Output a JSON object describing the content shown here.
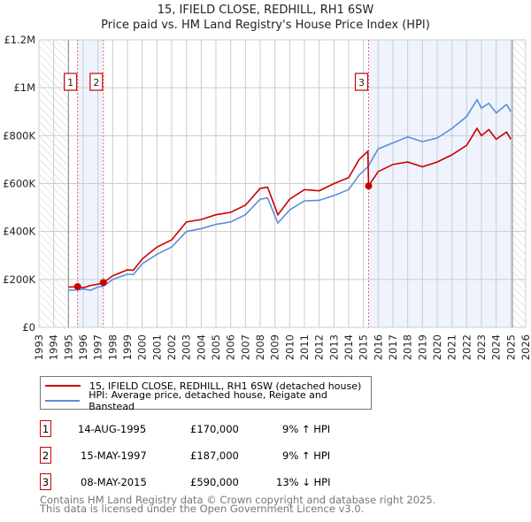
{
  "chart_data": {
    "type": "line",
    "title": "15, IFIELD CLOSE, REDHILL, RH1 6SW",
    "subtitle": "Price paid vs. HM Land Registry's House Price Index (HPI)",
    "xlim": [
      1993,
      2026
    ],
    "ylim": [
      0,
      1200000
    ],
    "x_ticks": [
      "1993",
      "1994",
      "1995",
      "1996",
      "1997",
      "1998",
      "1999",
      "2000",
      "2001",
      "2002",
      "2003",
      "2004",
      "2005",
      "2006",
      "2007",
      "2008",
      "2009",
      "2010",
      "2011",
      "2012",
      "2013",
      "2014",
      "2015",
      "2016",
      "2017",
      "2018",
      "2019",
      "2020",
      "2021",
      "2022",
      "2023",
      "2024",
      "2025",
      "2026"
    ],
    "y_ticks": [
      {
        "v": 0,
        "label": "£0"
      },
      {
        "v": 200000,
        "label": "£200K"
      },
      {
        "v": 400000,
        "label": "£400K"
      },
      {
        "v": 600000,
        "label": "£600K"
      },
      {
        "v": 800000,
        "label": "£800K"
      },
      {
        "v": 1000000,
        "label": "£1M"
      },
      {
        "v": 1200000,
        "label": "£1.2M"
      }
    ],
    "grid": true,
    "hatched_ranges": [
      [
        1993,
        1995
      ],
      [
        2025.1,
        2026
      ]
    ],
    "shaded_ranges": [
      [
        1995.62,
        1997.37
      ],
      [
        2015.35,
        2025.1
      ]
    ],
    "series": [
      {
        "name": "15, IFIELD CLOSE, REDHILL, RH1 6SW (detached house)",
        "color": "#cc0000",
        "x": [
          1995,
          1995.62,
          1996,
          1996.5,
          1997,
          1997.37,
          1998,
          1999,
          1999.4,
          2000,
          2001,
          2002,
          2003,
          2004,
          2005,
          2006,
          2007,
          2008,
          2008.5,
          2009.2,
          2010,
          2011,
          2012,
          2013,
          2014,
          2014.7,
          2015.3,
          2015.35,
          2016,
          2017,
          2018,
          2019,
          2020,
          2021,
          2022,
          2022.7,
          2023,
          2023.5,
          2024,
          2024.7,
          2025
        ],
        "y": [
          168000,
          170000,
          165000,
          175000,
          180000,
          187000,
          215000,
          240000,
          238000,
          285000,
          335000,
          365000,
          440000,
          450000,
          470000,
          480000,
          510000,
          580000,
          585000,
          470000,
          535000,
          575000,
          570000,
          600000,
          625000,
          700000,
          735000,
          590000,
          650000,
          680000,
          690000,
          670000,
          690000,
          720000,
          760000,
          830000,
          800000,
          825000,
          785000,
          815000,
          785000
        ]
      },
      {
        "name": "HPI: Average price, detached house, Reigate and Banstead",
        "color": "#5b8fd6",
        "x": [
          1995,
          1995.62,
          1996,
          1996.5,
          1997,
          1997.37,
          1998,
          1999,
          1999.4,
          2000,
          2001,
          2002,
          2003,
          2004,
          2005,
          2006,
          2007,
          2008,
          2008.5,
          2009.2,
          2010,
          2011,
          2012,
          2013,
          2014,
          2014.7,
          2015.3,
          2015.35,
          2016,
          2017,
          2018,
          2019,
          2020,
          2021,
          2022,
          2022.7,
          2023,
          2023.5,
          2024,
          2024.7,
          2025
        ],
        "y": [
          155000,
          156000,
          160000,
          155000,
          168000,
          172000,
          200000,
          222000,
          220000,
          265000,
          305000,
          335000,
          400000,
          412000,
          430000,
          440000,
          470000,
          535000,
          540000,
          435000,
          490000,
          528000,
          530000,
          550000,
          575000,
          635000,
          670000,
          675000,
          745000,
          770000,
          795000,
          775000,
          790000,
          830000,
          880000,
          950000,
          915000,
          935000,
          895000,
          930000,
          900000
        ]
      }
    ],
    "markers": [
      {
        "label": "1",
        "x": 1995.62,
        "y": 170000
      },
      {
        "label": "2",
        "x": 1997.37,
        "y": 187000
      },
      {
        "label": "3",
        "x": 2015.35,
        "y": 590000
      }
    ]
  },
  "legend": [
    "15, IFIELD CLOSE, REDHILL, RH1 6SW (detached house)",
    "HPI: Average price, detached house, Reigate and Banstead"
  ],
  "transactions": [
    {
      "num": "1",
      "date": "14-AUG-1995",
      "price": "£170,000",
      "hpi": "9% ↑ HPI"
    },
    {
      "num": "2",
      "date": "15-MAY-1997",
      "price": "£187,000",
      "hpi": "9% ↑ HPI"
    },
    {
      "num": "3",
      "date": "08-MAY-2015",
      "price": "£590,000",
      "hpi": "13% ↓ HPI"
    }
  ],
  "footer": [
    "Contains HM Land Registry data © Crown copyright and database right 2025.",
    "This data is licensed under the Open Government Licence v3.0."
  ]
}
